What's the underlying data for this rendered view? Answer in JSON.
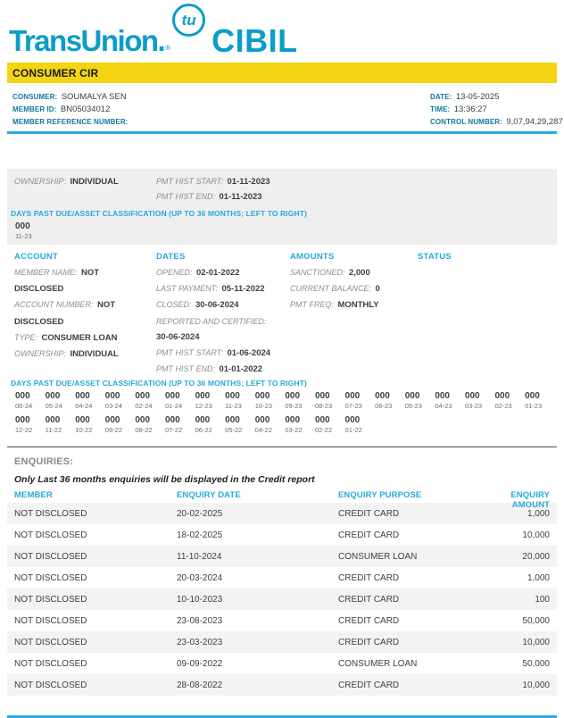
{
  "colors": {
    "brand_teal": "#0B9DC7",
    "accent_cyan": "#29A9DC",
    "banner_yellow": "#F4D512",
    "label_blue": "#15779E",
    "row_alt_gray": "#F3F3F3",
    "block_gray": "#EFEFEF"
  },
  "brand": {
    "transunion": "TransUnion",
    "registered": "®",
    "tu_badge": "tu",
    "cibil": "CIBIL"
  },
  "banner": {
    "title": "CONSUMER CIR"
  },
  "consumer_info": {
    "left": [
      {
        "label": "CONSUMER:",
        "value": "SOUMALYA SEN"
      },
      {
        "label": "MEMBER ID:",
        "value": "BN05034012"
      },
      {
        "label": "MEMBER REFERENCE NUMBER:",
        "value": ""
      }
    ],
    "right": [
      {
        "label": "DATE:",
        "value": "13-05-2025"
      },
      {
        "label": "TIME:",
        "value": "13:36:27"
      },
      {
        "label": "CONTROL NUMBER:",
        "value": "9,07,94,29,287"
      }
    ]
  },
  "prev_account": {
    "col1": [
      {
        "label": "OWNERSHIP:",
        "value": "INDIVIDUAL"
      }
    ],
    "col2": [
      {
        "label": "PMT HIST START:",
        "value": "01-11-2023"
      },
      {
        "label": "PMT HIST END:",
        "value": "01-11-2023"
      }
    ],
    "dpd_header": "DAYS PAST DUE/ASSET CLASSIFICATION (UP TO 36 MONTHS; LEFT TO RIGHT)",
    "dpd": [
      {
        "v": "000",
        "p": "11-23"
      }
    ]
  },
  "account_section": {
    "headers": [
      "ACCOUNT",
      "DATES",
      "AMOUNTS",
      "STATUS"
    ],
    "account": [
      {
        "label": "MEMBER NAME:",
        "value": "NOT DISCLOSED"
      },
      {
        "label": "ACCOUNT NUMBER:",
        "value": "NOT DISCLOSED"
      },
      {
        "label": "TYPE:",
        "value": "CONSUMER LOAN"
      },
      {
        "label": "OWNERSHIP:",
        "value": "INDIVIDUAL"
      }
    ],
    "dates": [
      {
        "label": "OPENED:",
        "value": "02-01-2022"
      },
      {
        "label": "LAST PAYMENT:",
        "value": "05-11-2022"
      },
      {
        "label": "CLOSED:",
        "value": "30-06-2024"
      },
      {
        "label": "REPORTED AND CERTIFIED:",
        "value": "30-06-2024"
      },
      {
        "label": "PMT HIST START:",
        "value": "01-06-2024"
      },
      {
        "label": "PMT HIST END:",
        "value": "01-01-2022"
      }
    ],
    "amounts": [
      {
        "label": "SANCTIONED:",
        "value": "2,000"
      },
      {
        "label": "CURRENT BALANCE:",
        "value": "0"
      },
      {
        "label": "PMT FREQ:",
        "value": "MONTHLY"
      }
    ],
    "dpd_header": "DAYS PAST DUE/ASSET CLASSIFICATION (UP TO 36 MONTHS; LEFT TO RIGHT)",
    "dpd_row1": [
      {
        "v": "000",
        "p": "06-24"
      },
      {
        "v": "000",
        "p": "05-24"
      },
      {
        "v": "000",
        "p": "04-24"
      },
      {
        "v": "000",
        "p": "03-24"
      },
      {
        "v": "000",
        "p": "02-24"
      },
      {
        "v": "000",
        "p": "01-24"
      },
      {
        "v": "000",
        "p": "12-23"
      },
      {
        "v": "000",
        "p": "11-23"
      },
      {
        "v": "000",
        "p": "10-23"
      },
      {
        "v": "000",
        "p": "09-23"
      },
      {
        "v": "000",
        "p": "08-23"
      },
      {
        "v": "000",
        "p": "07-23"
      },
      {
        "v": "000",
        "p": "06-23"
      },
      {
        "v": "000",
        "p": "05-23"
      },
      {
        "v": "000",
        "p": "04-23"
      },
      {
        "v": "000",
        "p": "03-23"
      },
      {
        "v": "000",
        "p": "02-23"
      },
      {
        "v": "000",
        "p": "01-23"
      }
    ],
    "dpd_row2": [
      {
        "v": "000",
        "p": "12-22"
      },
      {
        "v": "000",
        "p": "11-22"
      },
      {
        "v": "000",
        "p": "10-22"
      },
      {
        "v": "000",
        "p": "09-22"
      },
      {
        "v": "000",
        "p": "08-22"
      },
      {
        "v": "000",
        "p": "07-22"
      },
      {
        "v": "000",
        "p": "06-22"
      },
      {
        "v": "000",
        "p": "05-22"
      },
      {
        "v": "000",
        "p": "04-22"
      },
      {
        "v": "000",
        "p": "03-22"
      },
      {
        "v": "000",
        "p": "02-22"
      },
      {
        "v": "000",
        "p": "01-22"
      }
    ]
  },
  "enquiries": {
    "title": "ENQUIRIES:",
    "note": "Only Last 36 months enquiries will be displayed in the Credit report",
    "columns": [
      "MEMBER",
      "ENQUIRY DATE",
      "ENQUIRY PURPOSE",
      "ENQUIRY AMOUNT"
    ],
    "rows": [
      [
        "NOT DISCLOSED",
        "20-02-2025",
        "CREDIT CARD",
        "1,000"
      ],
      [
        "NOT DISCLOSED",
        "18-02-2025",
        "CREDIT CARD",
        "10,000"
      ],
      [
        "NOT DISCLOSED",
        "11-10-2024",
        "CONSUMER LOAN",
        "20,000"
      ],
      [
        "NOT DISCLOSED",
        "20-03-2024",
        "CREDIT CARD",
        "1,000"
      ],
      [
        "NOT DISCLOSED",
        "10-10-2023",
        "CREDIT CARD",
        "100"
      ],
      [
        "NOT DISCLOSED",
        "23-08-2023",
        "CREDIT CARD",
        "50,000"
      ],
      [
        "NOT DISCLOSED",
        "23-03-2023",
        "CREDIT CARD",
        "10,000"
      ],
      [
        "NOT DISCLOSED",
        "09-09-2022",
        "CONSUMER LOAN",
        "50,000"
      ],
      [
        "NOT DISCLOSED",
        "28-08-2022",
        "CREDIT CARD",
        "10,000"
      ]
    ]
  }
}
